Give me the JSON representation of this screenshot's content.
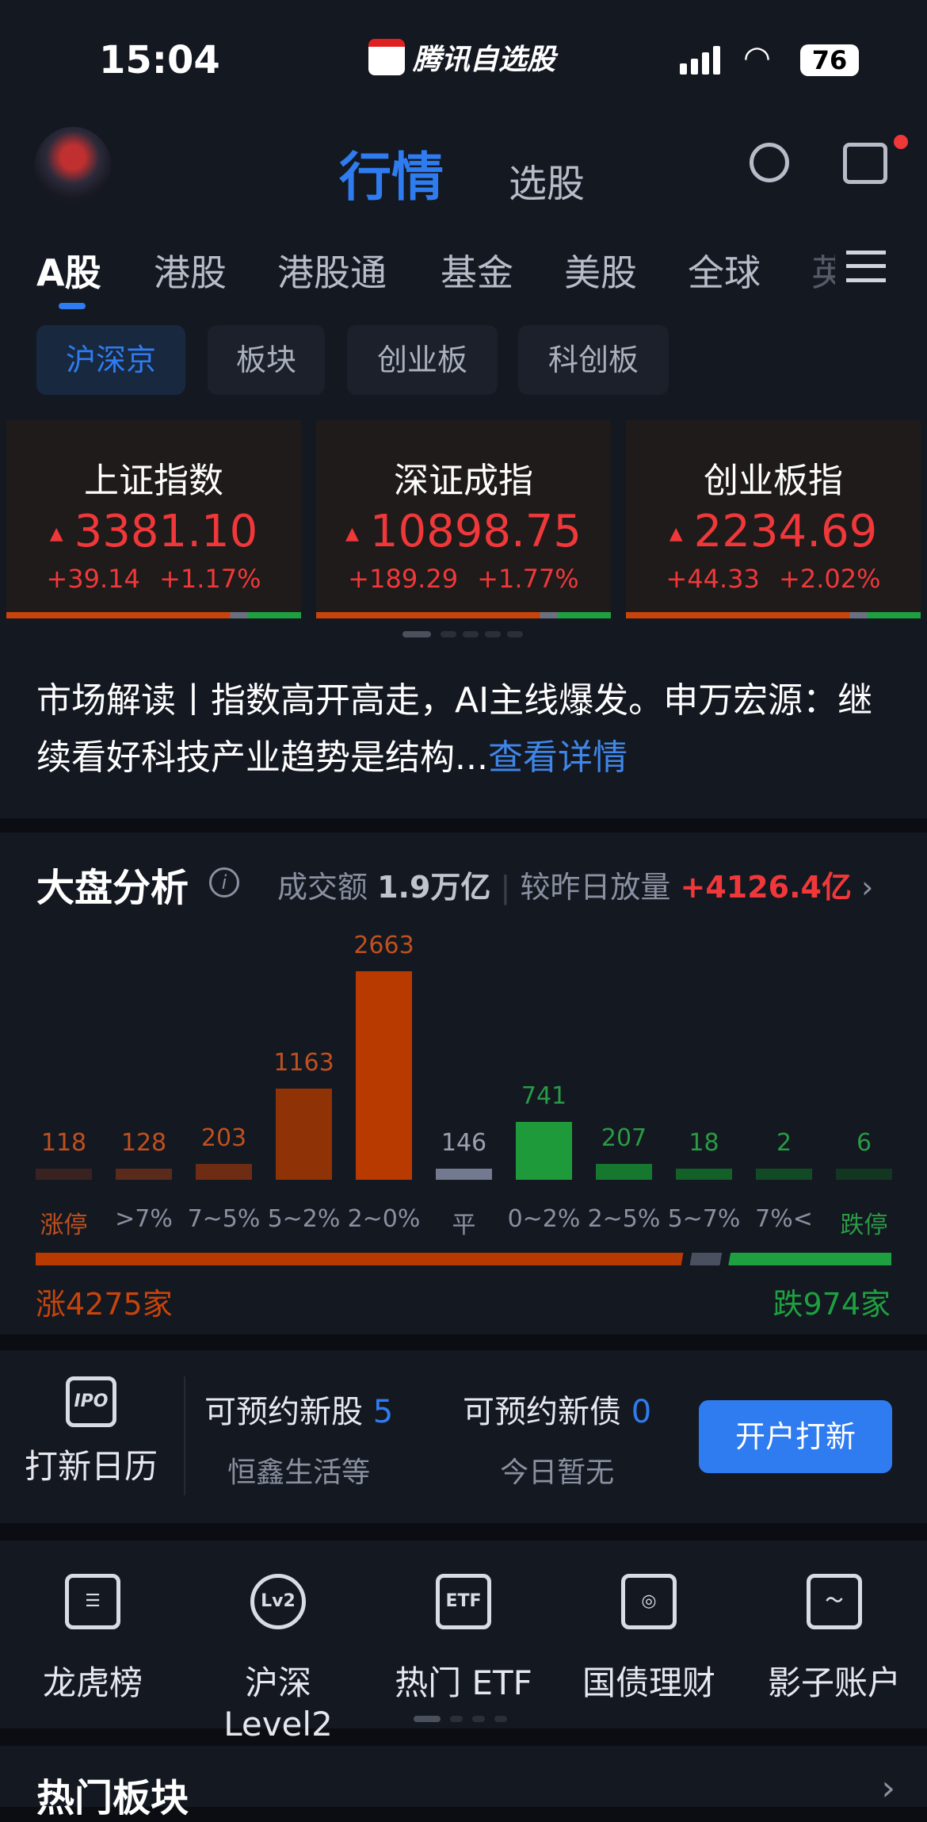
{
  "status": {
    "time": "15:04",
    "app": "腾讯自选股",
    "battery": "76"
  },
  "header": {
    "title": "行情",
    "subtitle": "选股"
  },
  "tabs": [
    "A股",
    "港股",
    "港股通",
    "基金",
    "美股",
    "全球",
    "英"
  ],
  "chips": [
    "沪深京",
    "板块",
    "创业板",
    "科创板"
  ],
  "indices": [
    {
      "name": "上证指数",
      "price": "3381.10",
      "change": "+39.14",
      "pct": "+1.17%"
    },
    {
      "name": "深证成指",
      "price": "10898.75",
      "change": "+189.29",
      "pct": "+1.77%"
    },
    {
      "name": "创业板指",
      "price": "2234.69",
      "change": "+44.33",
      "pct": "+2.02%"
    }
  ],
  "news": {
    "text": "市场解读丨指数高开高走，AI主线爆发。申万宏源：继续看好科技产业趋势是结构...",
    "more": "查看详情"
  },
  "analysis": {
    "title": "大盘分析",
    "turnover_label": "成交额",
    "turnover": "1.9万亿",
    "compare_label": "较昨日放量",
    "compare": "+4126.4亿",
    "rise": "涨4275家",
    "fall": "跌974家",
    "rise_count": 4275,
    "flat_count": 146,
    "fall_count": 974
  },
  "chart_data": {
    "type": "bar",
    "categories": [
      "涨停",
      ">7%",
      "7~5%",
      "5~2%",
      "2~0%",
      "平",
      "0~2%",
      "2~5%",
      "5~7%",
      "7%<",
      "跌停"
    ],
    "values": [
      118,
      128,
      203,
      1163,
      2663,
      146,
      741,
      207,
      18,
      2,
      6
    ],
    "colors": [
      "#3a2220",
      "#5a2a1a",
      "#6e2c12",
      "#8f3307",
      "#b83a00",
      "#737a90",
      "#1f9a3a",
      "#16782f",
      "#136128",
      "#134a26",
      "#12361f"
    ]
  },
  "ipo": {
    "calendar": "打新日历",
    "stock_label": "可预约新股",
    "stock_count": "5",
    "stock_sub": "恒鑫生活等",
    "bond_label": "可预约新债",
    "bond_count": "0",
    "bond_sub": "今日暂无",
    "button": "开户打新"
  },
  "shortcuts": [
    {
      "label": "龙虎榜",
      "icon": "list-icon"
    },
    {
      "label": "沪深 Level2",
      "icon": "lv2-icon"
    },
    {
      "label": "热门 ETF",
      "icon": "etf-icon"
    },
    {
      "label": "国债理财",
      "icon": "bond-icon"
    },
    {
      "label": "影子账户",
      "icon": "chart-icon"
    }
  ],
  "hot": {
    "title": "热门板块"
  },
  "colors": {
    "accent": "#2f7cf0",
    "rise": "#f0383a",
    "fall": "#1ea040"
  }
}
